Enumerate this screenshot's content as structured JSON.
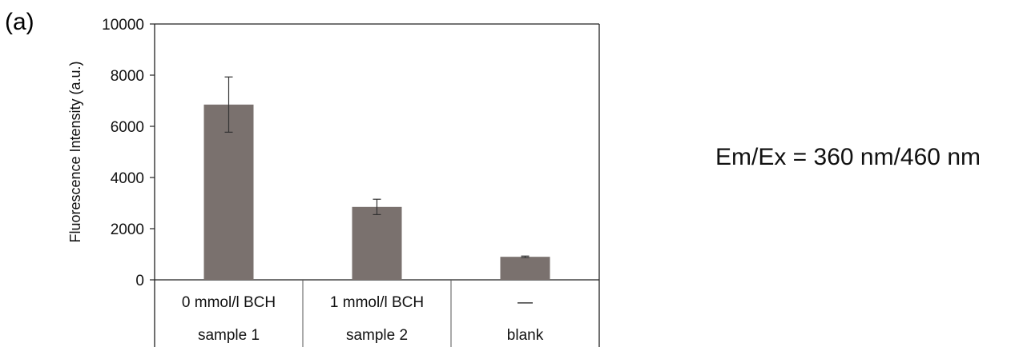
{
  "panel_label": "(a)",
  "note": "Em/Ex = 360 nm/460 nm",
  "chart_data": {
    "type": "bar",
    "title": "",
    "xlabel": "",
    "ylabel": "Fluorescence Intensity (a.u.)",
    "ylim": [
      0,
      10000
    ],
    "yticks": [
      0,
      2000,
      4000,
      6000,
      8000,
      10000
    ],
    "grid": false,
    "bar_color": "#7a716e",
    "categories": [
      "0 mmol/l BCH",
      "1 mmol/l BCH",
      "—"
    ],
    "group_labels": [
      "sample 1",
      "sample 2",
      "blank"
    ],
    "values": [
      6850,
      2850,
      900
    ],
    "errors": [
      1080,
      300,
      30
    ]
  }
}
